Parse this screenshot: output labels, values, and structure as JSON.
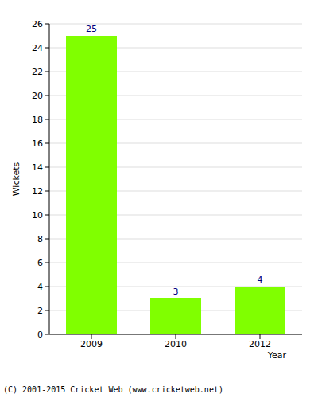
{
  "chart_data": {
    "type": "bar",
    "categories": [
      "2009",
      "2010",
      "2012"
    ],
    "values": [
      25,
      3,
      4
    ],
    "color": "#80ff00",
    "ylim": [
      0,
      26
    ],
    "yticks": [
      0,
      2,
      4,
      6,
      8,
      10,
      12,
      14,
      16,
      18,
      20,
      22,
      24,
      26
    ],
    "grid": true,
    "data_labels": true,
    "x_label": "Year",
    "y_label": "Wickets",
    "annotation": "(C) 2001-2015 Cricket Web (www.cricketweb.net)"
  }
}
